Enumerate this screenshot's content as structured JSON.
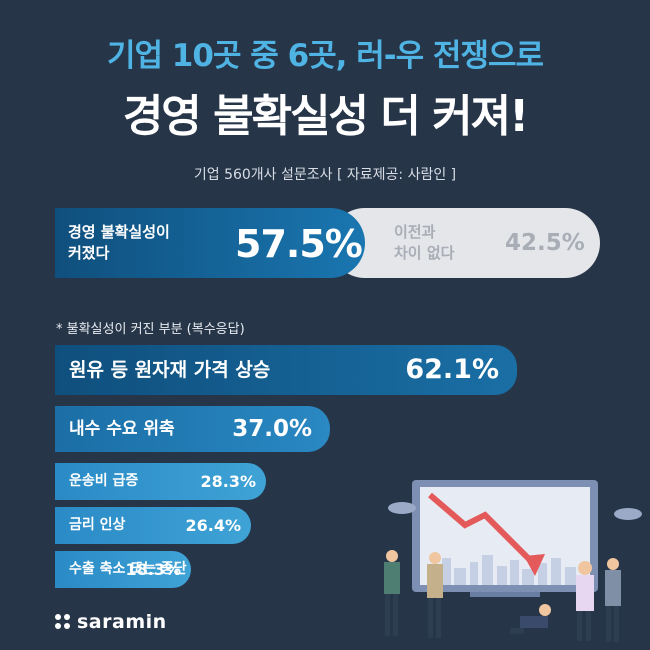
{
  "header": {
    "headline": "기업 10곳 중 6곳, 러-우 전쟁으로",
    "title": "경영 불확실성 더 커져!",
    "subtitle": "기업 560개사 설문조사 [ 자료제공: 사람인 ]"
  },
  "colors": {
    "background": "#263548",
    "accent": "#4fb3e3",
    "bar_dark": "#0f4f7d",
    "bar_light": "#3fa3d6",
    "pill_gray": "#e4e6ea"
  },
  "chart_data": [
    {
      "type": "bar",
      "categories": [
        "경영 불확실성이 커졌다",
        "이전과 차이 없다"
      ],
      "values": [
        57.5,
        42.5
      ],
      "labels": [
        "57.5%",
        "42.5%"
      ]
    },
    {
      "type": "bar",
      "title": "* 불확실성이 커진 부분 (복수응답)",
      "categories": [
        "원유 등 원자재 가격 상승",
        "내수 수요 위축",
        "운송비 급증",
        "금리 인상",
        "수출 축소 또는 중단"
      ],
      "values": [
        62.1,
        37.0,
        28.3,
        26.4,
        18.3
      ],
      "labels": [
        "62.1%",
        "37.0%",
        "28.3%",
        "26.4%",
        "18.3%"
      ]
    }
  ],
  "split": {
    "left_label_1": "경영 불확실성이",
    "left_label_2": "커졌다",
    "left_value": "57.5%",
    "right_label_1": "이전과",
    "right_label_2": "차이 없다",
    "right_value": "42.5%"
  },
  "bars": {
    "note": "* 불확실성이 커진 부분 (복수응답)"
  },
  "footer": {
    "brand": "saramin"
  }
}
